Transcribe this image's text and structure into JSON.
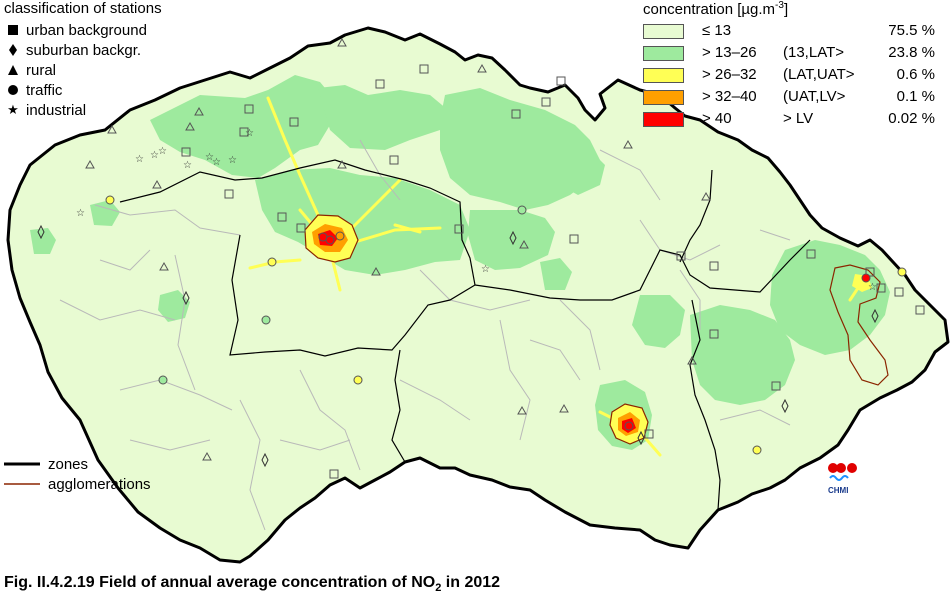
{
  "stations_legend": {
    "title": "classification of stations",
    "items": [
      {
        "symbol": "square",
        "label": "urban background"
      },
      {
        "symbol": "diamond",
        "label": "suburban backgr."
      },
      {
        "symbol": "triangle",
        "label": "rural"
      },
      {
        "symbol": "circle",
        "label": "traffic"
      },
      {
        "symbol": "star",
        "label": "industrial"
      }
    ]
  },
  "concentration_legend": {
    "title": "concentration [µg.m",
    "title_sup": "-3",
    "title_end": "]",
    "classes": [
      {
        "range": "≤ 13",
        "class": "",
        "percent": "75.5 %",
        "color": "#e8fbd2"
      },
      {
        "range": "> 13–26",
        "class": "(13,LAT>",
        "percent": "23.8 %",
        "color": "#9eea9e"
      },
      {
        "range": "> 26–32",
        "class": "(LAT,UAT>",
        "percent": "0.6 %",
        "color": "#ffff55"
      },
      {
        "range": "> 32–40",
        "class": "(UAT,LV>",
        "percent": "0.1 %",
        "color": "#ff9f00"
      },
      {
        "range": "> 40",
        "class": "> LV",
        "percent": "0.02 %",
        "color": "#ff0000"
      }
    ]
  },
  "map_legend": {
    "zones_label": "zones",
    "agglomerations_label": "agglomerations",
    "zones_color": "#000000",
    "agglomerations_color": "#8b2500"
  },
  "logo_text": "CHMI",
  "caption": {
    "main": "Fig. II.4.2.19  Field of annual average concentration of NO",
    "sub": "2",
    "end": " in 2012"
  },
  "colors": {
    "base_fill": "#e8fbd2",
    "medium_fill": "#9eea9e",
    "yellow": "#ffff55",
    "orange": "#ff9f00",
    "red": "#ff0000",
    "district_line": "#b9b9b9"
  }
}
